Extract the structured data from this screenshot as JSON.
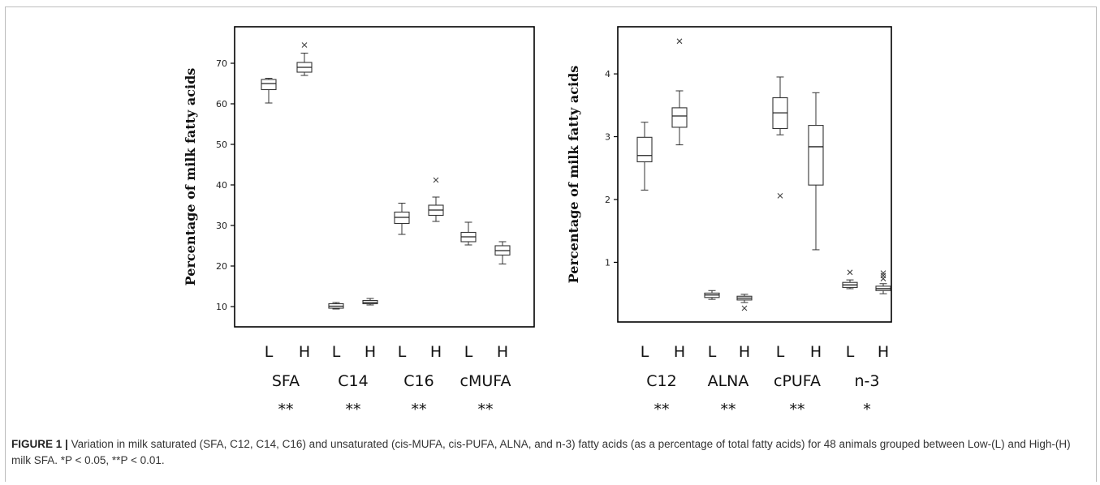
{
  "caption": {
    "label": "FIGURE 1 |",
    "text": "Variation in milk saturated (SFA, C12, C14, C16) and unsaturated (cis-MUFA, cis-PUFA, ALNA, and n-3) fatty acids (as a percentage of total fatty acids) for 48 animals grouped between Low-(L) and High-(H) milk SFA. *P < 0.05, **P < 0.01."
  },
  "chart_data": [
    {
      "type": "box",
      "ylabel": "Percentage of milk fatty acids",
      "ylim": [
        5,
        79
      ],
      "yticks": [
        10,
        20,
        30,
        40,
        50,
        60,
        70
      ],
      "group_labels": [
        "L",
        "H",
        "L",
        "H",
        "L",
        "H",
        "L",
        "H"
      ],
      "categories": [
        "SFA",
        "C14",
        "C16",
        "cMUFA"
      ],
      "significance": [
        "**",
        "**",
        "**",
        "**"
      ],
      "boxes": [
        {
          "cat": "SFA",
          "grp": "L",
          "min": 60.2,
          "q1": 63.5,
          "median": 65.0,
          "q3": 66.0,
          "max": 66.3,
          "outliers": []
        },
        {
          "cat": "SFA",
          "grp": "H",
          "min": 67.0,
          "q1": 67.8,
          "median": 69.0,
          "q3": 70.2,
          "max": 72.5,
          "outliers": [
            74.5
          ]
        },
        {
          "cat": "C14",
          "grp": "L",
          "min": 9.4,
          "q1": 9.6,
          "median": 10.1,
          "q3": 10.7,
          "max": 11.0,
          "outliers": []
        },
        {
          "cat": "C14",
          "grp": "H",
          "min": 10.4,
          "q1": 10.7,
          "median": 11.0,
          "q3": 11.5,
          "max": 12.0,
          "outliers": []
        },
        {
          "cat": "C16",
          "grp": "L",
          "min": 27.8,
          "q1": 30.5,
          "median": 32.0,
          "q3": 33.3,
          "max": 35.5,
          "outliers": []
        },
        {
          "cat": "C16",
          "grp": "H",
          "min": 31.0,
          "q1": 32.5,
          "median": 33.8,
          "q3": 35.0,
          "max": 37.0,
          "outliers": [
            41.2
          ]
        },
        {
          "cat": "cMUFA",
          "grp": "L",
          "min": 25.2,
          "q1": 26.0,
          "median": 27.2,
          "q3": 28.3,
          "max": 30.8,
          "outliers": []
        },
        {
          "cat": "cMUFA",
          "grp": "H",
          "min": 20.5,
          "q1": 22.7,
          "median": 23.8,
          "q3": 25.0,
          "max": 26.0,
          "outliers": []
        }
      ]
    },
    {
      "type": "box",
      "ylabel": "Percentage of milk fatty acids",
      "ylim": [
        0.05,
        4.75
      ],
      "yticks": [
        1,
        2,
        3,
        4
      ],
      "group_labels": [
        "L",
        "H",
        "L",
        "H",
        "L",
        "H",
        "L",
        "H"
      ],
      "categories": [
        "C12",
        "ALNA",
        "cPUFA",
        "n-3"
      ],
      "significance": [
        "**",
        "**",
        "**",
        "*"
      ],
      "boxes": [
        {
          "cat": "C12",
          "grp": "L",
          "min": 2.15,
          "q1": 2.6,
          "median": 2.7,
          "q3": 2.99,
          "max": 3.23,
          "outliers": []
        },
        {
          "cat": "C12",
          "grp": "H",
          "min": 2.87,
          "q1": 3.15,
          "median": 3.33,
          "q3": 3.46,
          "max": 3.73,
          "outliers": [
            4.52
          ]
        },
        {
          "cat": "ALNA",
          "grp": "L",
          "min": 0.41,
          "q1": 0.44,
          "median": 0.48,
          "q3": 0.51,
          "max": 0.55,
          "outliers": []
        },
        {
          "cat": "ALNA",
          "grp": "H",
          "min": 0.36,
          "q1": 0.4,
          "median": 0.43,
          "q3": 0.46,
          "max": 0.49,
          "outliers": [
            0.27
          ]
        },
        {
          "cat": "cPUFA",
          "grp": "L",
          "min": 3.03,
          "q1": 3.13,
          "median": 3.38,
          "q3": 3.62,
          "max": 3.95,
          "outliers": [
            2.06
          ]
        },
        {
          "cat": "cPUFA",
          "grp": "H",
          "min": 1.2,
          "q1": 2.23,
          "median": 2.84,
          "q3": 3.18,
          "max": 3.7,
          "outliers": []
        },
        {
          "cat": "n-3",
          "grp": "L",
          "min": 0.58,
          "q1": 0.6,
          "median": 0.64,
          "q3": 0.68,
          "max": 0.72,
          "outliers": [
            0.84
          ]
        },
        {
          "cat": "n-3",
          "grp": "H",
          "min": 0.5,
          "q1": 0.55,
          "median": 0.58,
          "q3": 0.62,
          "max": 0.66,
          "outliers": [
            0.74,
            0.79,
            0.83
          ]
        }
      ]
    }
  ]
}
